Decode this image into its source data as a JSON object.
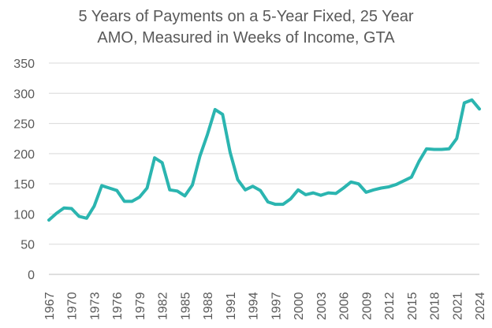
{
  "chart_data": {
    "type": "line",
    "title_lines": [
      "5 Years of Payments on a 5-Year Fixed, 25 Year",
      "AMO, Measured in Weeks of Income, GTA"
    ],
    "xlabel": "",
    "ylabel": "",
    "ylim": [
      0,
      350
    ],
    "yticks": [
      0,
      50,
      100,
      150,
      200,
      250,
      300,
      350
    ],
    "xtick_labels": [
      "1967",
      "1970",
      "1973",
      "1976",
      "1979",
      "1982",
      "1985",
      "1988",
      "1991",
      "1994",
      "1997",
      "2000",
      "2003",
      "2006",
      "2009",
      "2012",
      "2015",
      "2018",
      "2021",
      "2024"
    ],
    "grid": "horizontal",
    "legend": "none",
    "line_color": "#2bb5b0",
    "grid_color": "#d9d9d9",
    "series": [
      {
        "x": [
          1967,
          1968,
          1969,
          1970,
          1971,
          1972,
          1973,
          1974,
          1975,
          1976,
          1977,
          1978,
          1979,
          1980,
          1981,
          1982,
          1983,
          1984,
          1985,
          1986,
          1987,
          1988,
          1989,
          1990,
          1991,
          1992,
          1993,
          1994,
          1995,
          1996,
          1997,
          1998,
          1999,
          2000,
          2001,
          2002,
          2003,
          2004,
          2005,
          2006,
          2007,
          2008,
          2009,
          2010,
          2011,
          2012,
          2013,
          2014,
          2015,
          2016,
          2017,
          2018,
          2019,
          2020,
          2021,
          2022,
          2023,
          2024
        ],
        "values": [
          90,
          101,
          110,
          109,
          96,
          93,
          113,
          147,
          143,
          139,
          121,
          121,
          128,
          143,
          193,
          185,
          140,
          138,
          130,
          148,
          196,
          232,
          273,
          265,
          202,
          157,
          140,
          146,
          139,
          120,
          116,
          116,
          125,
          140,
          132,
          135,
          131,
          135,
          134,
          143,
          153,
          150,
          136,
          140,
          143,
          145,
          149,
          155,
          161,
          187,
          208,
          207,
          207,
          208,
          225,
          284,
          289,
          274
        ]
      }
    ]
  }
}
